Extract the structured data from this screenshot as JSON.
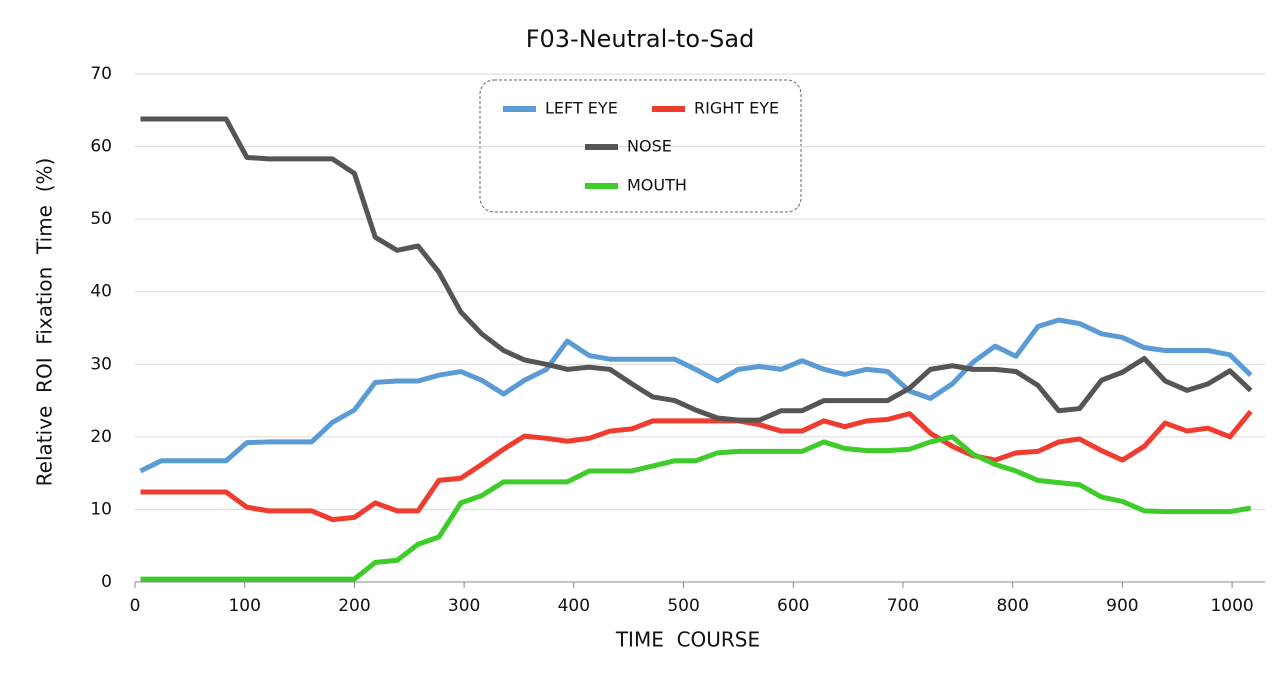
{
  "chart_data": {
    "type": "line",
    "title": "F03-Neutral-to-Sad",
    "x_label": "TIME  COURSE",
    "y_label": "Relative  ROI  Fixation  Time  (%)",
    "x": [
      5,
      24,
      44,
      63,
      83,
      102,
      122,
      141,
      161,
      180,
      200,
      219,
      239,
      258,
      277,
      297,
      316,
      336,
      355,
      375,
      394,
      414,
      433,
      453,
      472,
      492,
      511,
      531,
      550,
      569,
      589,
      608,
      628,
      647,
      667,
      686,
      706,
      725,
      745,
      764,
      784,
      803,
      823,
      842,
      861,
      881,
      900,
      920,
      939,
      959,
      978,
      998,
      1017
    ],
    "series": [
      {
        "name": "LEFT EYE",
        "color": "#5b9bd5",
        "values": [
          15.3,
          16.7,
          16.7,
          16.7,
          16.7,
          19.2,
          19.3,
          19.3,
          19.3,
          22.0,
          23.7,
          27.5,
          27.7,
          27.7,
          28.5,
          29.0,
          27.8,
          25.9,
          27.8,
          29.3,
          33.2,
          31.2,
          30.7,
          30.7,
          30.7,
          30.7,
          29.3,
          27.7,
          29.3,
          29.7,
          29.3,
          30.5,
          29.3,
          28.6,
          29.3,
          29.0,
          26.3,
          25.3,
          27.3,
          30.3,
          32.5,
          31.1,
          35.2,
          36.1,
          35.6,
          34.2,
          33.7,
          32.3,
          31.9,
          31.9,
          31.9,
          31.3,
          28.5
        ]
      },
      {
        "name": "RIGHT EYE",
        "color": "#f03c2e",
        "values": [
          12.4,
          12.4,
          12.4,
          12.4,
          12.4,
          10.3,
          9.8,
          9.8,
          9.8,
          8.6,
          8.9,
          10.9,
          9.8,
          9.8,
          14.0,
          14.3,
          16.2,
          18.3,
          20.1,
          19.8,
          19.4,
          19.8,
          20.8,
          21.1,
          22.2,
          22.2,
          22.2,
          22.2,
          22.2,
          21.7,
          20.8,
          20.8,
          22.2,
          21.4,
          22.2,
          22.4,
          23.2,
          20.5,
          18.7,
          17.4,
          16.8,
          17.8,
          18.0,
          19.3,
          19.7,
          18.1,
          16.8,
          18.7,
          21.9,
          20.8,
          21.2,
          20.0,
          23.5
        ]
      },
      {
        "name": "NOSE",
        "color": "#555555",
        "values": [
          63.8,
          63.8,
          63.8,
          63.8,
          63.8,
          58.5,
          58.3,
          58.3,
          58.3,
          58.3,
          56.3,
          47.5,
          45.7,
          46.3,
          42.7,
          37.2,
          34.2,
          31.9,
          30.6,
          30.0,
          29.3,
          29.6,
          29.3,
          27.3,
          25.5,
          25.0,
          23.7,
          22.6,
          22.3,
          22.3,
          23.6,
          23.6,
          25.0,
          25.0,
          25.0,
          25.0,
          26.7,
          29.3,
          29.8,
          29.3,
          29.3,
          29.0,
          27.1,
          23.6,
          23.9,
          27.8,
          28.9,
          30.8,
          27.7,
          26.4,
          27.3,
          29.1,
          26.4
        ]
      },
      {
        "name": "MOUTH",
        "color": "#3dcc29",
        "values": [
          0.4,
          0.4,
          0.4,
          0.4,
          0.4,
          0.4,
          0.4,
          0.4,
          0.4,
          0.4,
          0.4,
          2.7,
          3.0,
          5.2,
          6.2,
          10.9,
          11.9,
          13.8,
          13.8,
          13.8,
          13.8,
          15.3,
          15.3,
          15.3,
          16.0,
          16.7,
          16.7,
          17.8,
          18.0,
          18.0,
          18.0,
          18.0,
          19.3,
          18.4,
          18.1,
          18.1,
          18.3,
          19.3,
          20.0,
          17.6,
          16.2,
          15.3,
          14.0,
          13.7,
          13.4,
          11.7,
          11.1,
          9.8,
          9.7,
          9.7,
          9.7,
          9.7,
          10.2
        ]
      }
    ],
    "xlim": [
      0,
      1030
    ],
    "xticks": [
      0,
      100,
      200,
      300,
      400,
      500,
      600,
      700,
      800,
      900,
      1000
    ],
    "ylim": [
      0,
      70
    ],
    "yticks": [
      0,
      10,
      20,
      30,
      40,
      50,
      60,
      70
    ],
    "grid": true,
    "legend": "top-center"
  }
}
